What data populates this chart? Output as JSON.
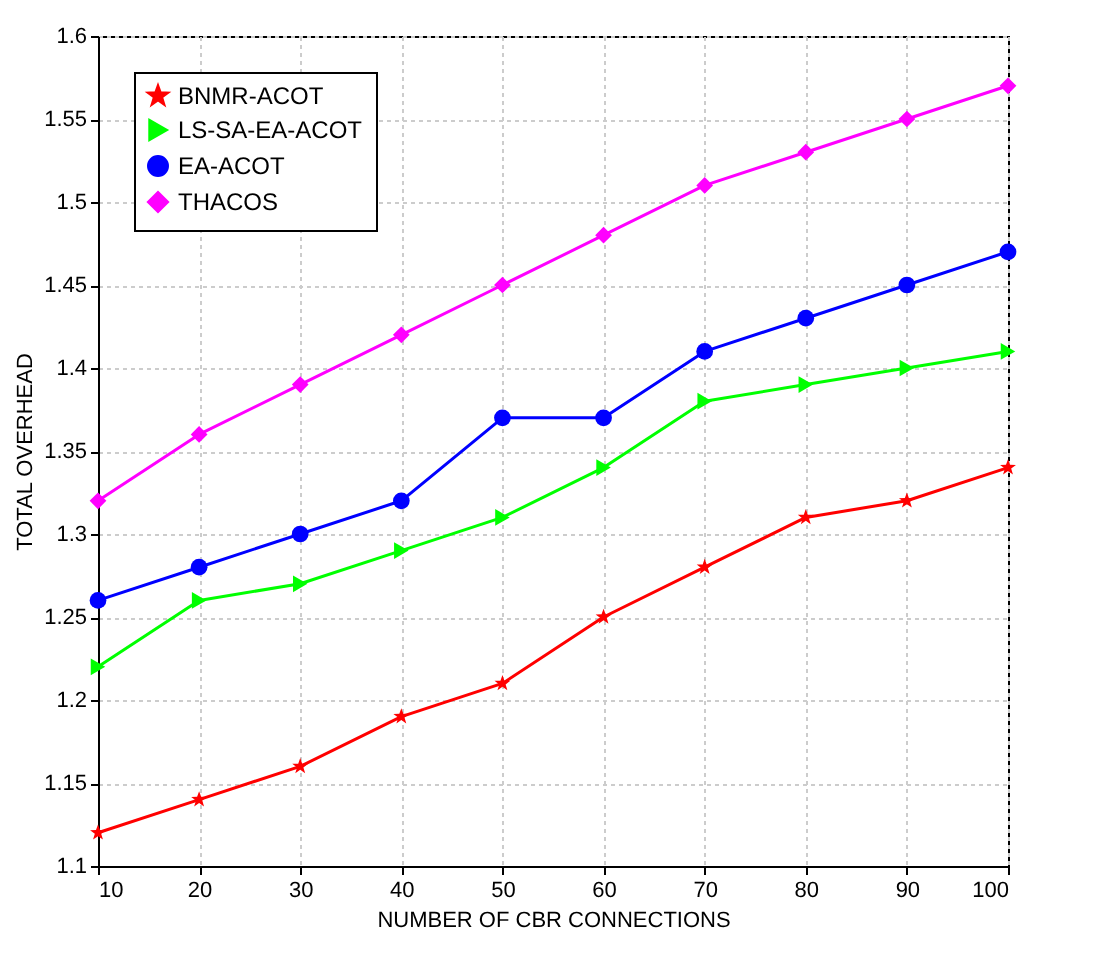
{
  "chart_data": {
    "type": "line",
    "xlabel": "NUMBER OF CBR CONNECTIONS",
    "ylabel": "TOTAL OVERHEAD",
    "x": [
      10,
      20,
      30,
      40,
      50,
      60,
      70,
      80,
      90,
      100
    ],
    "series": [
      {
        "name": "BNMR-ACOT",
        "color": "#ff0000",
        "marker": "star",
        "values": [
          1.12,
          1.14,
          1.16,
          1.19,
          1.21,
          1.25,
          1.28,
          1.31,
          1.32,
          1.34
        ]
      },
      {
        "name": "LS-SA-EA-ACOT",
        "color": "#00ff00",
        "marker": "triangle",
        "values": [
          1.22,
          1.26,
          1.27,
          1.29,
          1.31,
          1.34,
          1.38,
          1.39,
          1.4,
          1.41
        ]
      },
      {
        "name": "EA-ACOT",
        "color": "#0000ff",
        "marker": "circle",
        "values": [
          1.26,
          1.28,
          1.3,
          1.32,
          1.37,
          1.37,
          1.41,
          1.43,
          1.45,
          1.47
        ]
      },
      {
        "name": "THACOS",
        "color": "#ff00ff",
        "marker": "diamond",
        "values": [
          1.32,
          1.36,
          1.39,
          1.42,
          1.45,
          1.48,
          1.51,
          1.53,
          1.55,
          1.57
        ]
      }
    ],
    "xlim": [
      10,
      100
    ],
    "xticks": [
      10,
      20,
      30,
      40,
      50,
      60,
      70,
      80,
      90,
      100
    ],
    "ylim": [
      1.1,
      1.6
    ],
    "yticks": [
      1.1,
      1.15,
      1.2,
      1.25,
      1.3,
      1.35,
      1.4,
      1.45,
      1.5,
      1.55,
      1.6
    ],
    "grid": true,
    "legend": "top left"
  }
}
